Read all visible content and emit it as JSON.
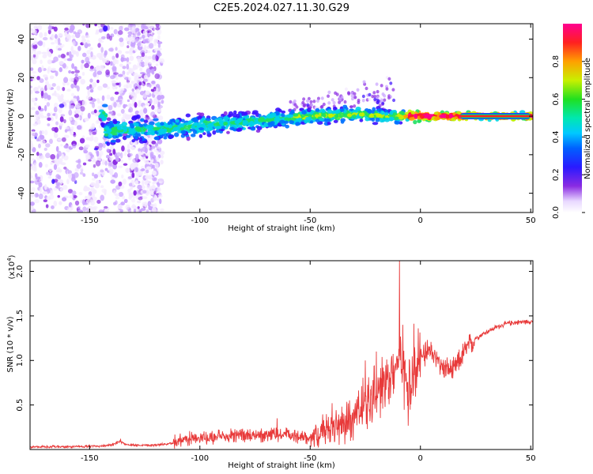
{
  "title": "C2E5.2024.027.11.30.G29",
  "chart_data": [
    {
      "type": "heatmap",
      "xlabel": "Height of straight line (km)",
      "ylabel": "Frequency (Hz)",
      "xlim": [
        -177,
        51
      ],
      "ylim": [
        -50,
        48
      ],
      "xticks": [
        -150,
        -100,
        -50,
        0,
        50
      ],
      "yticks": [
        -40,
        -20,
        0,
        20,
        40
      ],
      "colorbar": {
        "label": "Normalized spectral amplitude",
        "range": [
          0,
          1
        ],
        "ticks": [
          0.0,
          0.2,
          0.4,
          0.6,
          0.8
        ]
      },
      "ridge": [
        {
          "x": -143,
          "y": -8
        },
        {
          "x": -130,
          "y": -7
        },
        {
          "x": -110,
          "y": -6
        },
        {
          "x": -90,
          "y": -4
        },
        {
          "x": -70,
          "y": -2
        },
        {
          "x": -50,
          "y": 0
        },
        {
          "x": -30,
          "y": 1
        },
        {
          "x": -15,
          "y": 0
        },
        {
          "x": 0,
          "y": 0
        },
        {
          "x": 20,
          "y": 0
        },
        {
          "x": 50,
          "y": 0
        }
      ]
    },
    {
      "type": "line",
      "xlabel": "Height of straight line (km)",
      "ylabel": "SNR (10 * v/v)",
      "yscale_label": "(x10",
      "yscale_exp": "4",
      "xlim": [
        -177,
        51
      ],
      "ylim": [
        0,
        2.12
      ],
      "xticks": [
        -150,
        -100,
        -50,
        0,
        50
      ],
      "yticks": [
        0.5,
        1.0,
        1.5,
        2.0
      ],
      "ytick_labels": [
        "0.5",
        "1.0",
        "1.5",
        "2.0"
      ],
      "series": [
        {
          "color": "#e83a3a",
          "x": [
            -177,
            -160,
            -145,
            -140,
            -136,
            -134,
            -130,
            -120,
            -112,
            -108,
            -100,
            -90,
            -80,
            -70,
            -60,
            -50,
            -45,
            -40,
            -35,
            -30,
            -25,
            -20,
            -17,
            -14,
            -11,
            -9,
            -7,
            -5,
            -3,
            0,
            5,
            10,
            15,
            20,
            25,
            30,
            35,
            40,
            45,
            51
          ],
          "y": [
            0.03,
            0.03,
            0.04,
            0.05,
            0.09,
            0.06,
            0.05,
            0.05,
            0.07,
            0.11,
            0.12,
            0.14,
            0.16,
            0.17,
            0.16,
            0.14,
            0.18,
            0.22,
            0.28,
            0.38,
            0.5,
            0.62,
            0.72,
            0.8,
            0.9,
            1.05,
            0.85,
            0.7,
            0.9,
            1.05,
            1.1,
            0.92,
            0.88,
            1.1,
            1.25,
            1.32,
            1.38,
            1.42,
            1.43,
            1.44
          ],
          "spikes": [
            {
              "x": -136,
              "y": 0.12
            },
            {
              "x": -65,
              "y": 0.35
            },
            {
              "x": -40,
              "y": 0.52
            },
            {
              "x": -25,
              "y": 1.0
            },
            {
              "x": -20,
              "y": 1.1
            },
            {
              "x": -17,
              "y": 0.92
            },
            {
              "x": -13,
              "y": 1.05
            },
            {
              "x": -9.5,
              "y": 2.12
            },
            {
              "x": -8,
              "y": 1.4
            },
            {
              "x": -5,
              "y": 1.0
            }
          ]
        }
      ]
    }
  ]
}
